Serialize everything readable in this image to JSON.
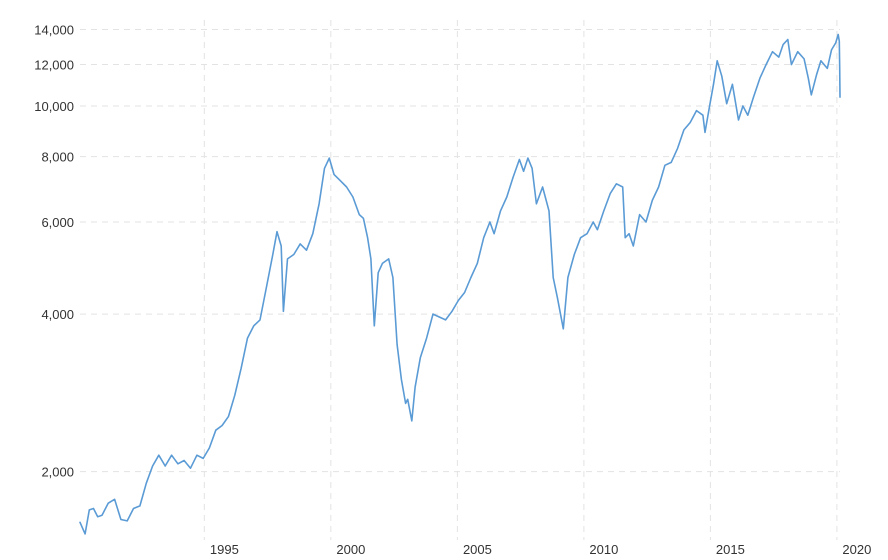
{
  "chart_data": {
    "type": "line",
    "title": "",
    "xlabel": "",
    "ylabel": "",
    "y_scale": "log",
    "ylim": [
      1480,
      14600
    ],
    "xlim": [
      "1990-02-01",
      "2020-02-15"
    ],
    "grid": true,
    "grid_style": "dashed",
    "legend": "none",
    "line_color": "#5b9bd5",
    "y_ticks": [
      {
        "value": 2000,
        "label": "2,000"
      },
      {
        "value": 4000,
        "label": "4,000"
      },
      {
        "value": 6000,
        "label": "6,000"
      },
      {
        "value": 8000,
        "label": "8,000"
      },
      {
        "value": 10000,
        "label": "10,000"
      },
      {
        "value": 12000,
        "label": "12,000"
      },
      {
        "value": 14000,
        "label": "14,000"
      }
    ],
    "x_ticks": [
      {
        "value": "1995-01-01",
        "label": "1995"
      },
      {
        "value": "2000-01-01",
        "label": "2000"
      },
      {
        "value": "2005-01-01",
        "label": "2005"
      },
      {
        "value": "2010-01-01",
        "label": "2010"
      },
      {
        "value": "2015-01-01",
        "label": "2015"
      },
      {
        "value": "2020-01-01",
        "label": "2020"
      }
    ],
    "series": [
      {
        "values": [
          [
            "1990-02-01",
            1600
          ],
          [
            "1990-04-15",
            1520
          ],
          [
            "1990-06-15",
            1690
          ],
          [
            "1990-08-15",
            1700
          ],
          [
            "1990-10-15",
            1640
          ],
          [
            "1990-12-15",
            1650
          ],
          [
            "1991-03-15",
            1740
          ],
          [
            "1991-06-15",
            1770
          ],
          [
            "1991-09-15",
            1620
          ],
          [
            "1991-12-15",
            1610
          ],
          [
            "1992-03-15",
            1700
          ],
          [
            "1992-06-15",
            1720
          ],
          [
            "1992-09-15",
            1900
          ],
          [
            "1992-12-15",
            2050
          ],
          [
            "1993-03-15",
            2150
          ],
          [
            "1993-06-15",
            2050
          ],
          [
            "1993-09-15",
            2150
          ],
          [
            "1993-12-15",
            2070
          ],
          [
            "1994-03-15",
            2100
          ],
          [
            "1994-06-15",
            2030
          ],
          [
            "1994-09-15",
            2150
          ],
          [
            "1994-12-15",
            2120
          ],
          [
            "1995-03-15",
            2220
          ],
          [
            "1995-06-15",
            2400
          ],
          [
            "1995-09-15",
            2450
          ],
          [
            "1995-12-15",
            2550
          ],
          [
            "1996-03-15",
            2800
          ],
          [
            "1996-06-15",
            3150
          ],
          [
            "1996-09-15",
            3600
          ],
          [
            "1996-12-15",
            3800
          ],
          [
            "1997-03-15",
            3900
          ],
          [
            "1997-06-15",
            4500
          ],
          [
            "1997-09-15",
            5200
          ],
          [
            "1997-11-15",
            5750
          ],
          [
            "1998-01-15",
            5400
          ],
          [
            "1998-02-15",
            4050
          ],
          [
            "1998-04-15",
            5100
          ],
          [
            "1998-07-15",
            5200
          ],
          [
            "1998-10-15",
            5450
          ],
          [
            "1999-01-15",
            5300
          ],
          [
            "1999-04-15",
            5700
          ],
          [
            "1999-07-15",
            6500
          ],
          [
            "1999-10-01",
            7600
          ],
          [
            "1999-12-10",
            7950
          ],
          [
            "2000-02-15",
            7400
          ],
          [
            "2000-05-15",
            7200
          ],
          [
            "2000-08-15",
            7000
          ],
          [
            "2000-11-15",
            6700
          ],
          [
            "2001-02-15",
            6200
          ],
          [
            "2001-04-15",
            6100
          ],
          [
            "2001-06-15",
            5600
          ],
          [
            "2001-08-01",
            5100
          ],
          [
            "2001-09-20",
            3800
          ],
          [
            "2001-11-15",
            4800
          ],
          [
            "2002-01-15",
            5000
          ],
          [
            "2002-04-15",
            5100
          ],
          [
            "2002-06-15",
            4700
          ],
          [
            "2002-08-15",
            3500
          ],
          [
            "2002-10-15",
            3000
          ],
          [
            "2002-12-15",
            2700
          ],
          [
            "2003-01-15",
            2750
          ],
          [
            "2003-03-15",
            2500
          ],
          [
            "2003-05-01",
            2900
          ],
          [
            "2003-07-15",
            3300
          ],
          [
            "2003-10-15",
            3600
          ],
          [
            "2004-01-15",
            4000
          ],
          [
            "2004-04-15",
            3950
          ],
          [
            "2004-07-15",
            3900
          ],
          [
            "2004-10-15",
            4050
          ],
          [
            "2005-01-15",
            4250
          ],
          [
            "2005-04-15",
            4400
          ],
          [
            "2005-07-15",
            4700
          ],
          [
            "2005-10-15",
            5000
          ],
          [
            "2006-01-15",
            5600
          ],
          [
            "2006-04-15",
            6000
          ],
          [
            "2006-06-15",
            5700
          ],
          [
            "2006-09-15",
            6300
          ],
          [
            "2006-12-15",
            6700
          ],
          [
            "2007-03-15",
            7300
          ],
          [
            "2007-06-15",
            7900
          ],
          [
            "2007-08-15",
            7500
          ],
          [
            "2007-10-15",
            7950
          ],
          [
            "2007-12-15",
            7600
          ],
          [
            "2008-02-15",
            6500
          ],
          [
            "2008-05-15",
            7000
          ],
          [
            "2008-08-15",
            6300
          ],
          [
            "2008-10-15",
            4700
          ],
          [
            "2008-12-15",
            4300
          ],
          [
            "2009-03-09",
            3750
          ],
          [
            "2009-05-15",
            4700
          ],
          [
            "2009-08-15",
            5200
          ],
          [
            "2009-11-15",
            5600
          ],
          [
            "2010-02-15",
            5700
          ],
          [
            "2010-05-15",
            6000
          ],
          [
            "2010-07-15",
            5800
          ],
          [
            "2010-10-15",
            6300
          ],
          [
            "2011-01-15",
            6800
          ],
          [
            "2011-04-15",
            7100
          ],
          [
            "2011-07-15",
            7000
          ],
          [
            "2011-08-20",
            5600
          ],
          [
            "2011-10-15",
            5700
          ],
          [
            "2011-12-15",
            5400
          ],
          [
            "2012-03-15",
            6200
          ],
          [
            "2012-06-15",
            6000
          ],
          [
            "2012-09-15",
            6600
          ],
          [
            "2012-12-15",
            7000
          ],
          [
            "2013-03-15",
            7700
          ],
          [
            "2013-06-15",
            7800
          ],
          [
            "2013-09-15",
            8300
          ],
          [
            "2013-12-15",
            9000
          ],
          [
            "2014-03-15",
            9300
          ],
          [
            "2014-06-15",
            9800
          ],
          [
            "2014-09-15",
            9600
          ],
          [
            "2014-10-15",
            8900
          ],
          [
            "2014-12-15",
            9900
          ],
          [
            "2015-02-15",
            11000
          ],
          [
            "2015-04-10",
            12200
          ],
          [
            "2015-06-15",
            11400
          ],
          [
            "2015-08-24",
            10100
          ],
          [
            "2015-11-15",
            11000
          ],
          [
            "2016-02-11",
            9400
          ],
          [
            "2016-04-15",
            10000
          ],
          [
            "2016-06-24",
            9600
          ],
          [
            "2016-09-15",
            10400
          ],
          [
            "2016-12-15",
            11300
          ],
          [
            "2017-03-15",
            12000
          ],
          [
            "2017-06-15",
            12700
          ],
          [
            "2017-09-15",
            12400
          ],
          [
            "2017-11-15",
            13100
          ],
          [
            "2018-01-22",
            13400
          ],
          [
            "2018-03-15",
            12000
          ],
          [
            "2018-06-15",
            12700
          ],
          [
            "2018-09-15",
            12300
          ],
          [
            "2018-11-15",
            11300
          ],
          [
            "2018-12-27",
            10500
          ],
          [
            "2019-03-15",
            11500
          ],
          [
            "2019-05-15",
            12200
          ],
          [
            "2019-08-15",
            11800
          ],
          [
            "2019-10-15",
            12800
          ],
          [
            "2019-12-15",
            13200
          ],
          [
            "2020-01-20",
            13700
          ],
          [
            "2020-02-05",
            13300
          ],
          [
            "2020-02-10",
            11800
          ],
          [
            "2020-02-15",
            10400
          ]
        ]
      }
    ]
  }
}
